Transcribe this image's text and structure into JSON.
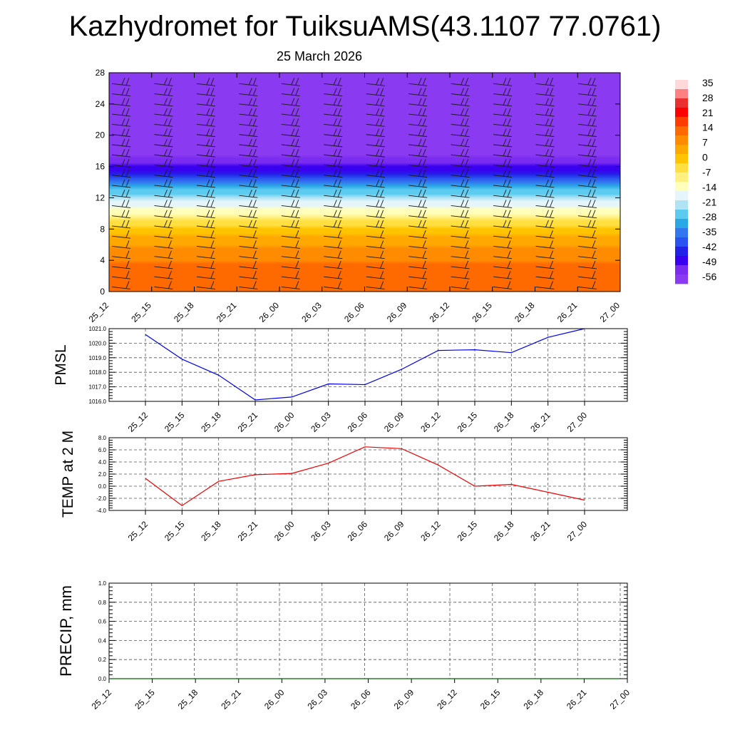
{
  "title": "Kazhydromet for TuiksuAMS(43.1107 77.0761)",
  "subtitle": "25 March 2026",
  "colors": {
    "pmsl": "#0000ee",
    "temp": "#ee0000",
    "precip": "#006400",
    "axis": "#000000",
    "grid": "#555555"
  },
  "chart_data": [
    {
      "type": "heatmap",
      "ylim": [
        0,
        28
      ],
      "yticks": [
        "0",
        "4",
        "8",
        "12",
        "16",
        "20",
        "24",
        "28"
      ],
      "xticks": [
        "25_12",
        "25_15",
        "25_18",
        "25_21",
        "26_00",
        "26_03",
        "26_06",
        "26_09",
        "26_12",
        "26_15",
        "26_18",
        "26_21",
        "27_00"
      ],
      "colorbar": {
        "labels": [
          "35",
          "28",
          "21",
          "14",
          "7",
          "0",
          "-7",
          "-14",
          "-21",
          "-28",
          "-35",
          "-42",
          "-49",
          "-56"
        ],
        "colors": [
          "#ffd9d9",
          "#ff8080",
          "#e83030",
          "#ff0000",
          "#ff3d00",
          "#ff6a00",
          "#ff8c00",
          "#ffa800",
          "#ffc400",
          "#ffe040",
          "#fff080",
          "#ffffbb",
          "#e5f5fa",
          "#b0e4f5",
          "#5ccbf0",
          "#2aa7e5",
          "#3377f0",
          "#2a52f0",
          "#2222e6",
          "#3a00f0",
          "#7a2cf0",
          "#8a3af0"
        ]
      },
      "value_profile": [
        {
          "height": 0,
          "value": 12
        },
        {
          "height": 3,
          "value": 10
        },
        {
          "height": 6,
          "value": 3
        },
        {
          "height": 8.5,
          "value": -6
        },
        {
          "height": 10,
          "value": -14
        },
        {
          "height": 12,
          "value": -25
        },
        {
          "height": 14,
          "value": -38
        },
        {
          "height": 15.5,
          "value": -50
        },
        {
          "height": 17,
          "value": -58
        },
        {
          "height": 19,
          "value": -62
        },
        {
          "height": 28,
          "value": -62
        }
      ]
    },
    {
      "type": "line",
      "ylabel": "PMSL",
      "x": [
        "25_12",
        "25_15",
        "25_18",
        "25_21",
        "26_00",
        "26_03",
        "26_06",
        "26_09",
        "26_12",
        "26_15",
        "26_18",
        "26_21",
        "27_00"
      ],
      "values": [
        1020.6,
        1018.9,
        1017.8,
        1016.1,
        1016.3,
        1017.2,
        1017.15,
        1018.2,
        1019.5,
        1019.55,
        1019.35,
        1020.4,
        1021.0
      ],
      "ylim": [
        1016.0,
        1021.0
      ],
      "yticks": [
        "1016.0",
        "1017.0",
        "1018.0",
        "1019.0",
        "1020.0",
        "1021.0"
      ],
      "grid": true
    },
    {
      "type": "line",
      "ylabel": "TEMP at 2 M",
      "x": [
        "25_12",
        "25_15",
        "25_18",
        "25_21",
        "26_00",
        "26_03",
        "26_06",
        "26_09",
        "26_12",
        "26_15",
        "26_18",
        "26_21",
        "27_00"
      ],
      "values": [
        1.3,
        -3.2,
        0.8,
        1.9,
        2.1,
        3.8,
        6.5,
        6.2,
        3.5,
        0.0,
        0.3,
        -1.0,
        -2.3
      ],
      "ylim": [
        -4.0,
        8.0
      ],
      "yticks": [
        "-4.0",
        "-2.0",
        "0.0",
        "2.0",
        "4.0",
        "6.0",
        "8.0"
      ],
      "grid": true
    },
    {
      "type": "line",
      "ylabel": "PRECIP, mm",
      "x": [
        "25_12",
        "25_15",
        "25_18",
        "25_21",
        "26_00",
        "26_03",
        "26_06",
        "26_09",
        "26_12",
        "26_15",
        "26_18",
        "26_21",
        "27_00"
      ],
      "values": [
        0,
        0,
        0,
        0,
        0,
        0,
        0,
        0,
        0,
        0,
        0,
        0,
        0
      ],
      "ylim": [
        0.0,
        1.0
      ],
      "yticks": [
        "0.0",
        "0.2",
        "0.4",
        "0.6",
        "0.8",
        "1.0"
      ],
      "grid": true
    }
  ]
}
